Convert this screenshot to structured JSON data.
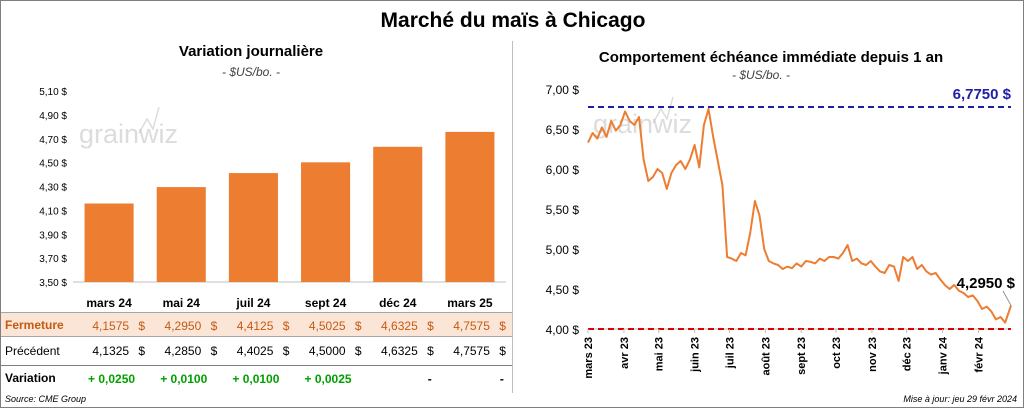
{
  "main_title": "Marché du maïs à Chicago",
  "watermark": "grainwiz",
  "left_chart": {
    "title": "Variation  journalière",
    "subtitle": "- $US/bo. -"
  },
  "right_chart": {
    "title": "Comportement  échéance immédiate depuis 1 an",
    "subtitle": "- $US/bo. -"
  },
  "table": {
    "rows": [
      {
        "label": "Fermeture",
        "values": [
          "4,1575",
          "4,2950",
          "4,4125",
          "4,5025",
          "4,6325",
          "4,7575"
        ],
        "unit": "$"
      },
      {
        "label": "Précédent",
        "values": [
          "4,1325",
          "4,2850",
          "4,4025",
          "4,5000",
          "4,6325",
          "4,7575"
        ],
        "unit": "$"
      },
      {
        "label": "Variation",
        "values": [
          "+ 0,0250",
          "+ 0,0100",
          "+ 0,0100",
          "+ 0,0025",
          "-",
          "-"
        ],
        "unit": ""
      }
    ]
  },
  "footer": {
    "source": "Source: CME Group",
    "updated": "Mise à jour: jeu 29 févr 2024"
  },
  "colors": {
    "bar": "#ed7d31",
    "line": "#ed7d31",
    "max_line": "#1f1fa6",
    "min_line": "#e00000",
    "positive": "#00a000"
  },
  "chart_data": [
    {
      "type": "bar",
      "title": "Variation  journalière",
      "subtitle": "- $US/bo. -",
      "categories": [
        "mars 24",
        "mai 24",
        "juil 24",
        "sept 24",
        "déc 24",
        "mars 25"
      ],
      "values": [
        4.1575,
        4.295,
        4.4125,
        4.5025,
        4.6325,
        4.7575
      ],
      "ylim": [
        3.5,
        5.1
      ],
      "yticks": [
        3.5,
        3.7,
        3.9,
        4.1,
        4.3,
        4.5,
        4.7,
        4.9,
        5.1
      ],
      "ytick_labels": [
        "3,50 $",
        "3,70 $",
        "3,90 $",
        "4,10 $",
        "4,30 $",
        "4,50 $",
        "4,70 $",
        "4,90 $",
        "5,10 $"
      ],
      "grid": false
    },
    {
      "type": "line",
      "title": "Comportement  échéance immédiate depuis 1 an",
      "subtitle": "- $US/bo. -",
      "ylim": [
        4.0,
        7.0
      ],
      "yticks": [
        4.0,
        4.5,
        5.0,
        5.5,
        6.0,
        6.5,
        7.0
      ],
      "ytick_labels": [
        "4,00 $",
        "4,50 $",
        "5,00 $",
        "5,50 $",
        "6,00 $",
        "6,50 $",
        "7,00 $"
      ],
      "xlim": [
        "2023-03-01",
        "2024-02-29"
      ],
      "x_ticks": [
        "mars 23",
        "avr 23",
        "mai 23",
        "juin 23",
        "juil 23",
        "août 23",
        "sept 23",
        "oct 23",
        "nov 23",
        "déc 23",
        "janv 24",
        "févr 24"
      ],
      "x_tick_dates": [
        "2023-03-01",
        "2023-04-01",
        "2023-05-01",
        "2023-06-01",
        "2023-07-01",
        "2023-08-01",
        "2023-09-01",
        "2023-10-01",
        "2023-11-01",
        "2023-12-01",
        "2024-01-01",
        "2024-02-01"
      ],
      "max_line": {
        "value": 6.775,
        "label": "6,7750 $"
      },
      "min_line": {
        "value": 4.0
      },
      "last_label": "4,2950 $",
      "series": [
        {
          "x": [
            "2023-03-01",
            "2023-03-05",
            "2023-03-09",
            "2023-03-13",
            "2023-03-17",
            "2023-03-21",
            "2023-03-25",
            "2023-03-29",
            "2023-04-02",
            "2023-04-06",
            "2023-04-10",
            "2023-04-14",
            "2023-04-18",
            "2023-04-22",
            "2023-04-26",
            "2023-04-30",
            "2023-05-04",
            "2023-05-08",
            "2023-05-12",
            "2023-05-16",
            "2023-05-20",
            "2023-05-24",
            "2023-05-28",
            "2023-06-01",
            "2023-06-05",
            "2023-06-09",
            "2023-06-13",
            "2023-06-17",
            "2023-06-21",
            "2023-06-25",
            "2023-06-29",
            "2023-07-03",
            "2023-07-07",
            "2023-07-11",
            "2023-07-15",
            "2023-07-19",
            "2023-07-23",
            "2023-07-27",
            "2023-07-31",
            "2023-08-04",
            "2023-08-08",
            "2023-08-12",
            "2023-08-16",
            "2023-08-20",
            "2023-08-24",
            "2023-08-28",
            "2023-09-01",
            "2023-09-05",
            "2023-09-09",
            "2023-09-13",
            "2023-09-17",
            "2023-09-21",
            "2023-09-25",
            "2023-09-29",
            "2023-10-03",
            "2023-10-07",
            "2023-10-11",
            "2023-10-15",
            "2023-10-19",
            "2023-10-23",
            "2023-10-27",
            "2023-10-31",
            "2023-11-04",
            "2023-11-08",
            "2023-11-12",
            "2023-11-16",
            "2023-11-20",
            "2023-11-24",
            "2023-11-28",
            "2023-12-02",
            "2023-12-06",
            "2023-12-10",
            "2023-12-14",
            "2023-12-18",
            "2023-12-22",
            "2023-12-26",
            "2023-12-30",
            "2024-01-03",
            "2024-01-07",
            "2024-01-11",
            "2024-01-15",
            "2024-01-19",
            "2024-01-23",
            "2024-01-27",
            "2024-01-31",
            "2024-02-04",
            "2024-02-08",
            "2024-02-12",
            "2024-02-16",
            "2024-02-20",
            "2024-02-24",
            "2024-02-29"
          ],
          "y": [
            6.33,
            6.45,
            6.38,
            6.52,
            6.4,
            6.6,
            6.48,
            6.55,
            6.72,
            6.6,
            6.55,
            6.65,
            6.12,
            5.85,
            5.9,
            6.0,
            5.95,
            5.75,
            5.95,
            6.05,
            6.1,
            6.0,
            6.12,
            6.3,
            6.02,
            6.55,
            6.75,
            6.4,
            6.1,
            5.8,
            4.9,
            4.88,
            4.85,
            4.95,
            4.92,
            5.2,
            5.6,
            5.42,
            5.0,
            4.85,
            4.82,
            4.8,
            4.75,
            4.78,
            4.76,
            4.82,
            4.78,
            4.85,
            4.84,
            4.82,
            4.88,
            4.85,
            4.9,
            4.9,
            4.88,
            4.95,
            5.05,
            4.85,
            4.88,
            4.82,
            4.8,
            4.85,
            4.78,
            4.72,
            4.7,
            4.8,
            4.78,
            4.6,
            4.9,
            4.85,
            4.9,
            4.75,
            4.8,
            4.72,
            4.68,
            4.7,
            4.62,
            4.55,
            4.5,
            4.55,
            4.48,
            4.45,
            4.4,
            4.42,
            4.35,
            4.25,
            4.28,
            4.22,
            4.12,
            4.15,
            4.08,
            4.295
          ]
        }
      ]
    }
  ]
}
